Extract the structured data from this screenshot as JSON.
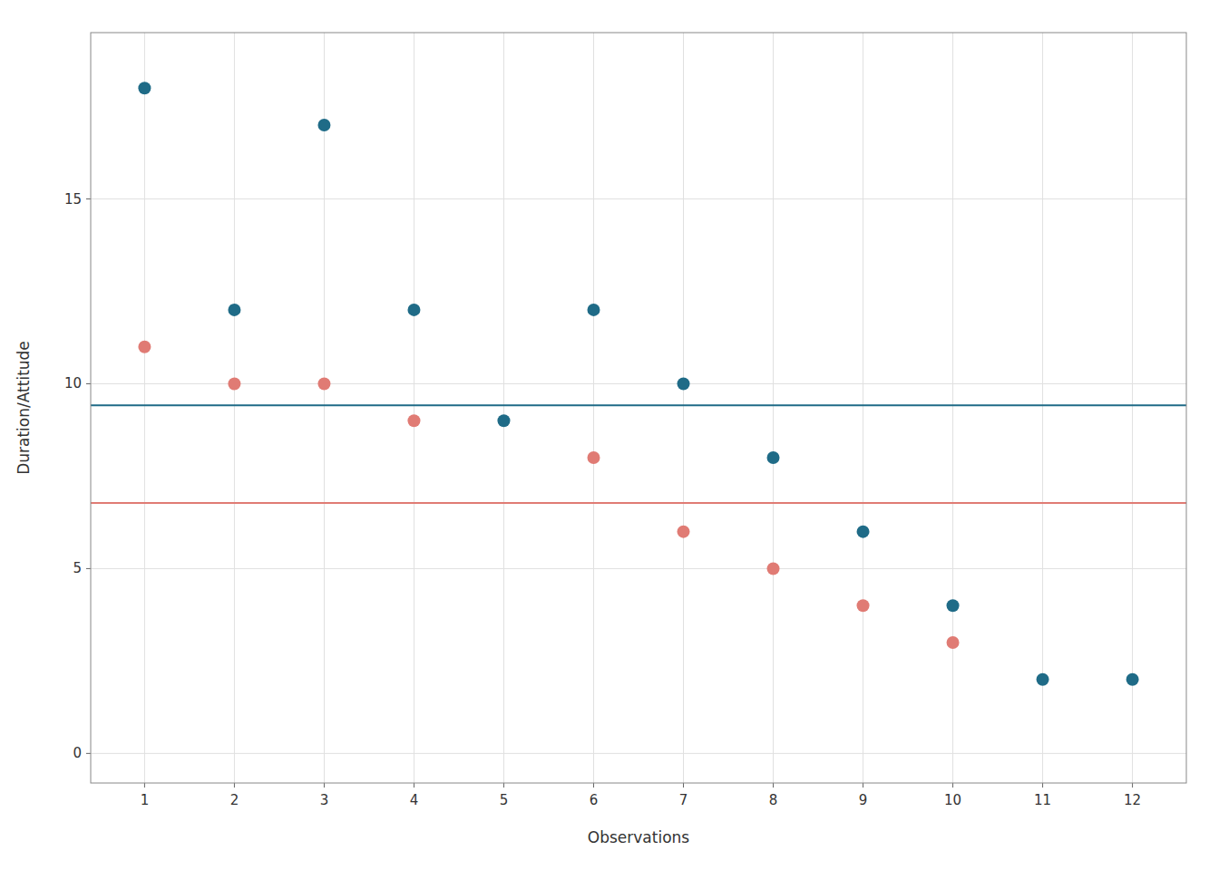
{
  "chart_data": {
    "type": "scatter",
    "xlabel": "Observations",
    "ylabel": "Duration/Attitude",
    "series": [
      {
        "color": "#1f6b87",
        "x": [
          1,
          2,
          3,
          4,
          5,
          6,
          7,
          8,
          9,
          10,
          11,
          12
        ],
        "values": [
          18,
          12,
          17,
          12,
          9,
          12,
          10,
          8,
          6,
          4,
          2,
          2
        ],
        "reference_line": 9.417
      },
      {
        "color": "#e07b74",
        "x": [
          1,
          2,
          3,
          4,
          6,
          7,
          8,
          9,
          10
        ],
        "values": [
          11,
          10,
          10,
          9,
          8,
          6,
          5,
          4,
          3
        ],
        "reference_line": 6.778
      }
    ],
    "xlim": [
      0.4,
      12.6
    ],
    "ylim": [
      -0.8,
      19.5
    ],
    "xticks": [
      1,
      2,
      3,
      4,
      5,
      6,
      7,
      8,
      9,
      10,
      11,
      12
    ],
    "yticks": [
      0,
      5,
      10,
      15
    ],
    "grid": true
  }
}
